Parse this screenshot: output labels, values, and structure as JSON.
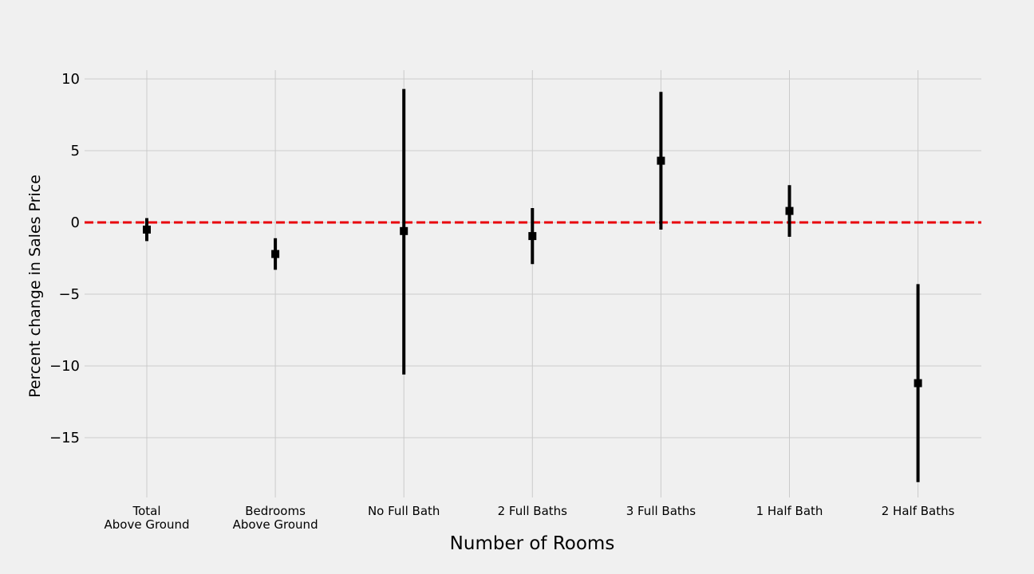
{
  "chart_data": {
    "type": "errorbar",
    "title": "",
    "xlabel": "Number of Rooms",
    "ylabel": "Percent change in Sales Price",
    "categories": [
      [
        "Total",
        "Above Ground"
      ],
      [
        "Bedrooms",
        "Above Ground"
      ],
      [
        "No Full Bath"
      ],
      [
        "2 Full Baths"
      ],
      [
        "3 Full Baths"
      ],
      [
        "1 Half Bath"
      ],
      [
        "2 Half Baths"
      ]
    ],
    "values": [
      -0.5,
      -2.2,
      -0.6,
      -0.95,
      4.3,
      0.8,
      -11.2
    ],
    "lower": [
      -1.3,
      -3.3,
      -10.6,
      -2.9,
      -0.5,
      -1.0,
      -18.1
    ],
    "upper": [
      0.3,
      -1.1,
      9.3,
      1.0,
      9.1,
      2.6,
      -4.3
    ],
    "ylim": [
      -19.3,
      10.6
    ],
    "yticks": [
      10,
      5,
      0,
      -5,
      -10,
      -15
    ],
    "ytick_labels": [
      "10",
      "5",
      "0",
      "−5",
      "−10",
      "−15"
    ],
    "reference_line": {
      "y": 0,
      "style": "dashed",
      "color": "#e8000b"
    },
    "grid": true,
    "colors": {
      "marker": "#000000",
      "background": "#f0f0f0",
      "grid": "#cbcbcb"
    }
  }
}
